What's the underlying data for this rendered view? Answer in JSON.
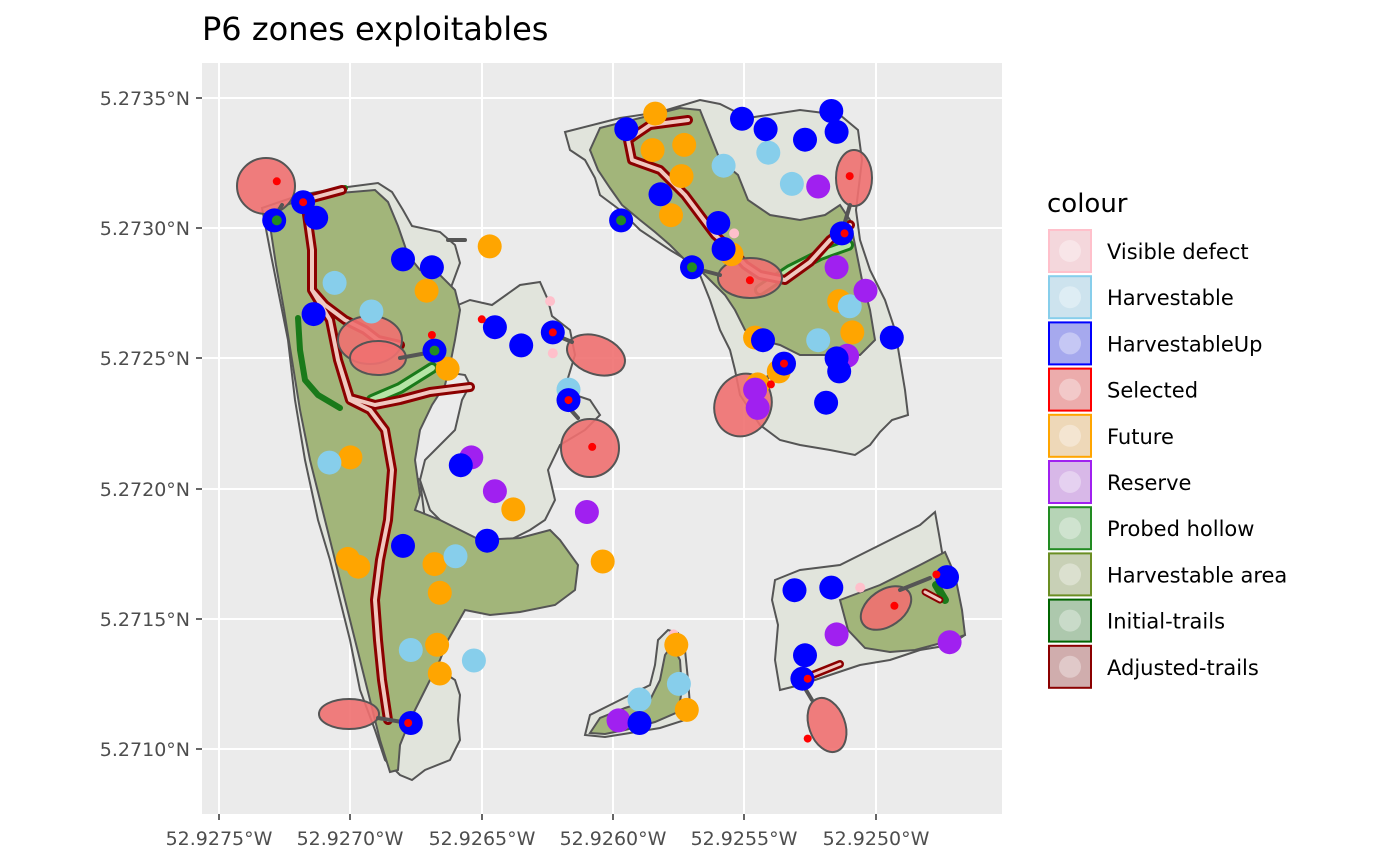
{
  "chart_data": {
    "type": "map",
    "title": "P6 zones exploitables",
    "x_ticks": [
      "52.9275°W",
      "52.9270°W",
      "52.9265°W",
      "52.9260°W",
      "52.9255°W",
      "52.9250°W"
    ],
    "y_ticks": [
      "5.2735°N",
      "5.2730°N",
      "5.2725°N",
      "5.2720°N",
      "5.2715°N",
      "5.2710°N"
    ],
    "legend": {
      "title": "colour",
      "placement": "right",
      "items": [
        {
          "label": "Visible defect",
          "fill": "#f4d7dc",
          "stroke": "#ffc0cb"
        },
        {
          "label": "Harvestable",
          "fill": "#cde3ee",
          "stroke": "#87ceeb"
        },
        {
          "label": "HarvestableUp",
          "fill": "#a6a9ee",
          "stroke": "#0000ff"
        },
        {
          "label": "Selected",
          "fill": "#ecacac",
          "stroke": "#ff0000"
        },
        {
          "label": "Future",
          "fill": "#eed8b8",
          "stroke": "#ffa500"
        },
        {
          "label": "Reserve",
          "fill": "#d8b8e8",
          "stroke": "#a020f0"
        },
        {
          "label": "Probed hollow",
          "fill": "#b6d4b6",
          "stroke": "#228b22"
        },
        {
          "label": "Harvestable area",
          "fill": "#c8d0b6",
          "stroke": "#6b8e23"
        },
        {
          "label": "Initial-trails",
          "fill": "#adc8ad",
          "stroke": "#006400"
        },
        {
          "label": "Adjusted-trails",
          "fill": "#d0adad",
          "stroke": "#8b0000"
        }
      ]
    },
    "points": {
      "harvestable": [
        [
          -52.92706,
          5.27279
        ],
        [
          -52.92692,
          5.27268
        ],
        [
          -52.92708,
          5.2721
        ],
        [
          -52.92677,
          5.27138
        ],
        [
          -52.92653,
          5.27134
        ],
        [
          -52.9266,
          5.27174
        ],
        [
          -52.92617,
          5.27238
        ],
        [
          -52.92558,
          5.27324
        ],
        [
          -52.92541,
          5.27329
        ],
        [
          -52.92532,
          5.27317
        ],
        [
          -52.9251,
          5.2727
        ],
        [
          -52.92522,
          5.27257
        ],
        [
          -52.9259,
          5.27119
        ],
        [
          -52.92575,
          5.27125
        ]
      ],
      "harvestable_up": [
        [
          -52.92729,
          5.27303
        ],
        [
          -52.92718,
          5.2731
        ],
        [
          -52.92713,
          5.27304
        ],
        [
          -52.92714,
          5.27267
        ],
        [
          -52.9268,
          5.27288
        ],
        [
          -52.92669,
          5.27285
        ],
        [
          -52.92645,
          5.27262
        ],
        [
          -52.92635,
          5.27255
        ],
        [
          -52.92623,
          5.2726
        ],
        [
          -52.92617,
          5.27234
        ],
        [
          -52.92658,
          5.27209
        ],
        [
          -52.92648,
          5.2718
        ],
        [
          -52.9268,
          5.27178
        ],
        [
          -52.92668,
          5.27253
        ],
        [
          -52.92597,
          5.27303
        ],
        [
          -52.92595,
          5.27338
        ],
        [
          -52.92582,
          5.27313
        ],
        [
          -52.9257,
          5.27285
        ],
        [
          -52.9256,
          5.27302
        ],
        [
          -52.92558,
          5.27292
        ],
        [
          -52.92551,
          5.27342
        ],
        [
          -52.92542,
          5.27338
        ],
        [
          -52.92527,
          5.27334
        ],
        [
          -52.92517,
          5.27345
        ],
        [
          -52.92515,
          5.27337
        ],
        [
          -52.92513,
          5.27298
        ],
        [
          -52.92535,
          5.27248
        ],
        [
          -52.92543,
          5.27257
        ],
        [
          -52.92515,
          5.2725
        ],
        [
          -52.92514,
          5.27245
        ],
        [
          -52.92519,
          5.27233
        ],
        [
          -52.92494,
          5.27258
        ],
        [
          -52.92531,
          5.27161
        ],
        [
          -52.92517,
          5.27162
        ],
        [
          -52.92527,
          5.27136
        ],
        [
          -52.92528,
          5.27127
        ],
        [
          -52.92677,
          5.2711
        ],
        [
          -52.9259,
          5.2711
        ],
        [
          -52.92473,
          5.27166
        ]
      ],
      "future": [
        [
          -52.927,
          5.27212
        ],
        [
          -52.92701,
          5.27173
        ],
        [
          -52.92697,
          5.2717
        ],
        [
          -52.92671,
          5.27276
        ],
        [
          -52.92663,
          5.27246
        ],
        [
          -52.92668,
          5.27171
        ],
        [
          -52.92666,
          5.2716
        ],
        [
          -52.92667,
          5.2714
        ],
        [
          -52.92666,
          5.27129
        ],
        [
          -52.92647,
          5.27293
        ],
        [
          -52.92638,
          5.27192
        ],
        [
          -52.92604,
          5.27172
        ],
        [
          -52.92576,
          5.2714
        ],
        [
          -52.92572,
          5.27115
        ],
        [
          -52.92584,
          5.27344
        ],
        [
          -52.92585,
          5.2733
        ],
        [
          -52.92573,
          5.27332
        ],
        [
          -52.92578,
          5.27305
        ],
        [
          -52.92574,
          5.2732
        ],
        [
          -52.92555,
          5.2729
        ],
        [
          -52.92546,
          5.27258
        ],
        [
          -52.92545,
          5.2724
        ],
        [
          -52.92537,
          5.27245
        ],
        [
          -52.92514,
          5.27272
        ],
        [
          -52.92509,
          5.2726
        ]
      ],
      "reserve": [
        [
          -52.92654,
          5.27212
        ],
        [
          -52.92645,
          5.27199
        ],
        [
          -52.9261,
          5.27191
        ],
        [
          -52.92546,
          5.27238
        ],
        [
          -52.92545,
          5.27231
        ],
        [
          -52.92522,
          5.27316
        ],
        [
          -52.92515,
          5.27285
        ],
        [
          -52.92504,
          5.27276
        ],
        [
          -52.92511,
          5.27251
        ],
        [
          -52.92515,
          5.27144
        ],
        [
          -52.92472,
          5.27141
        ],
        [
          -52.92598,
          5.27111
        ]
      ],
      "visible_defect": [
        [
          -52.92624,
          5.27272
        ],
        [
          -52.92623,
          5.27252
        ],
        [
          -52.92554,
          5.27298
        ],
        [
          -52.92506,
          5.27162
        ],
        [
          -52.92577,
          5.27144
        ]
      ],
      "probed_hollow": [
        [
          -52.92728,
          5.27303
        ],
        [
          -52.92668,
          5.27253
        ],
        [
          -52.92597,
          5.27303
        ],
        [
          -52.9257,
          5.27285
        ]
      ],
      "selected": [
        [
          -52.92728,
          5.27318
        ],
        [
          -52.92718,
          5.2731
        ],
        [
          -52.92669,
          5.27259
        ],
        [
          -52.92623,
          5.2726
        ],
        [
          -52.92617,
          5.27234
        ],
        [
          -52.92608,
          5.27216
        ],
        [
          -52.92678,
          5.2711
        ],
        [
          -52.9265,
          5.27265
        ],
        [
          -52.92512,
          5.27298
        ],
        [
          -52.9251,
          5.2732
        ],
        [
          -52.92548,
          5.2728
        ],
        [
          -52.9254,
          5.2724
        ],
        [
          -52.92535,
          5.27248
        ],
        [
          -52.92526,
          5.27127
        ],
        [
          -52.92493,
          5.27155
        ],
        [
          -52.92526,
          5.27104
        ],
        [
          -52.92477,
          5.27167
        ]
      ]
    }
  }
}
